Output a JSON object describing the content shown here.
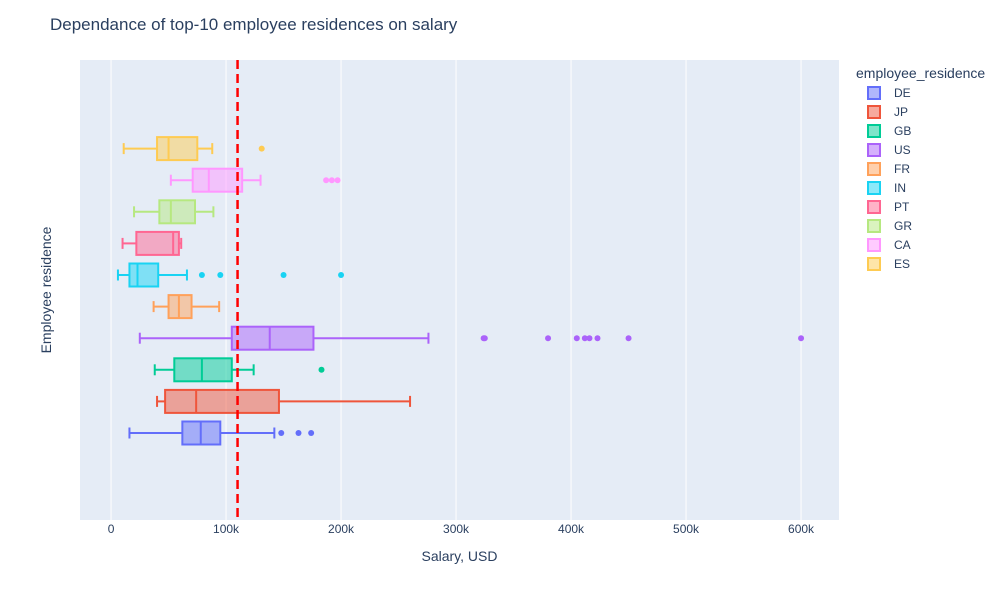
{
  "chart_data": {
    "type": "box",
    "orientation": "horizontal",
    "title": "Dependance of top-10 employee residences on salary",
    "xlabel": "Salary, USD",
    "ylabel": "Employee residence",
    "xlim": [
      -27000,
      633000
    ],
    "x_ticks": [
      0,
      100000,
      200000,
      300000,
      400000,
      500000,
      600000
    ],
    "x_tick_labels": [
      "0",
      "100k",
      "200k",
      "300k",
      "400k",
      "500k",
      "600k"
    ],
    "grid": true,
    "legend_title": "employee_residence",
    "legend_position": "right",
    "reference_line": {
      "x": 110000,
      "color": "#ff0000",
      "style": "dashed"
    },
    "series": [
      {
        "name": "DE",
        "color": "#636efa",
        "lowerfence": 16000,
        "q1": 62000,
        "median": 78000,
        "q3": 95000,
        "upperfence": 142000,
        "outliers": [
          148000,
          163000,
          174000
        ]
      },
      {
        "name": "JP",
        "color": "#ef553b",
        "lowerfence": 40000,
        "q1": 47000,
        "median": 74000,
        "q3": 146000,
        "upperfence": 260000,
        "outliers": []
      },
      {
        "name": "GB",
        "color": "#00cc96",
        "lowerfence": 38000,
        "q1": 55000,
        "median": 79000,
        "q3": 105000,
        "upperfence": 124000,
        "outliers": [
          183000
        ]
      },
      {
        "name": "US",
        "color": "#ab63fa",
        "lowerfence": 25000,
        "q1": 105000,
        "median": 138000,
        "q3": 176000,
        "upperfence": 276000,
        "outliers": [
          324000,
          325000,
          380000,
          405000,
          412000,
          416000,
          423000,
          450000,
          600000
        ]
      },
      {
        "name": "FR",
        "color": "#ffa15a",
        "lowerfence": 37000,
        "q1": 50000,
        "median": 59000,
        "q3": 70000,
        "upperfence": 94000,
        "outliers": []
      },
      {
        "name": "IN",
        "color": "#19d3f3",
        "lowerfence": 6000,
        "q1": 16000,
        "median": 23000,
        "q3": 41000,
        "upperfence": 66000,
        "outliers": [
          79000,
          95000,
          150000,
          200000
        ]
      },
      {
        "name": "PT",
        "color": "#ff6692",
        "lowerfence": 10000,
        "q1": 22000,
        "median": 54000,
        "q3": 59000,
        "upperfence": 61000,
        "outliers": []
      },
      {
        "name": "GR",
        "color": "#b6e880",
        "lowerfence": 20000,
        "q1": 42000,
        "median": 52000,
        "q3": 73000,
        "upperfence": 89000,
        "outliers": []
      },
      {
        "name": "CA",
        "color": "#ff97ff",
        "lowerfence": 52000,
        "q1": 71000,
        "median": 85000,
        "q3": 114000,
        "upperfence": 130000,
        "outliers": [
          187000,
          192000,
          197000
        ]
      },
      {
        "name": "ES",
        "color": "#fecb52",
        "lowerfence": 11000,
        "q1": 40000,
        "median": 50000,
        "q3": 75000,
        "upperfence": 88000,
        "outliers": [
          131000
        ]
      }
    ]
  }
}
